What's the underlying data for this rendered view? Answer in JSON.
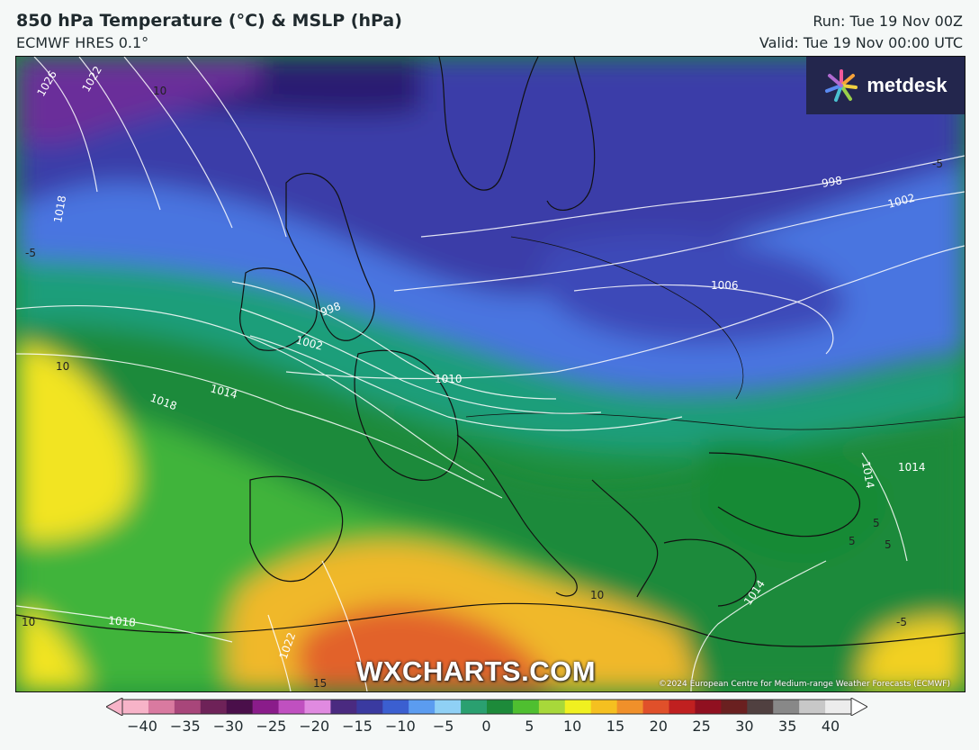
{
  "header": {
    "title": "850 hPa Temperature (°C) & MSLP (hPa)",
    "model": "ECMWF HRES 0.1°",
    "run": "Run: Tue 19 Nov 00Z",
    "valid": "Valid: Tue 19 Nov 00:00 UTC"
  },
  "logo": {
    "text": "metdesk",
    "icon": "metdesk-star-icon"
  },
  "watermark": "WXCHARTS.COM",
  "copyright": "©2024 European Centre for Medium-range Weather Forecasts (ECMWF)",
  "map": {
    "region": "Europe and North Africa",
    "isobar_labels": [
      "1026",
      "1022",
      "1018",
      "998",
      "1002",
      "1014",
      "1010",
      "1018",
      "1006",
      "998",
      "1002",
      "1014",
      "1014",
      "1014",
      "1018",
      "1022"
    ],
    "temperature_labels": [
      "10",
      "-5",
      "10",
      "-5",
      "10",
      "10",
      "5",
      "5",
      "5",
      "15",
      "-5"
    ]
  },
  "colorbar": {
    "units": "°C",
    "ticks": [
      "−40",
      "−35",
      "−30",
      "−25",
      "−20",
      "−15",
      "−10",
      "−5",
      "0",
      "5",
      "10",
      "15",
      "20",
      "25",
      "30",
      "35",
      "40"
    ],
    "colors": [
      "#f7b3c8",
      "#d97aa0",
      "#a8467a",
      "#6e2258",
      "#4a0f4a",
      "#8a1c8a",
      "#c050c0",
      "#e08ae0",
      "#4a2a80",
      "#3a3aa0",
      "#3b5fd0",
      "#5b9cf0",
      "#8fd0f5",
      "#2aa070",
      "#1d8a3a",
      "#4fbf30",
      "#a8d83a",
      "#f0f020",
      "#f5c020",
      "#f0902a",
      "#e0502a",
      "#c02020",
      "#901020",
      "#6a2020",
      "#504040",
      "#888888",
      "#c8c8c8",
      "#ececec"
    ]
  }
}
